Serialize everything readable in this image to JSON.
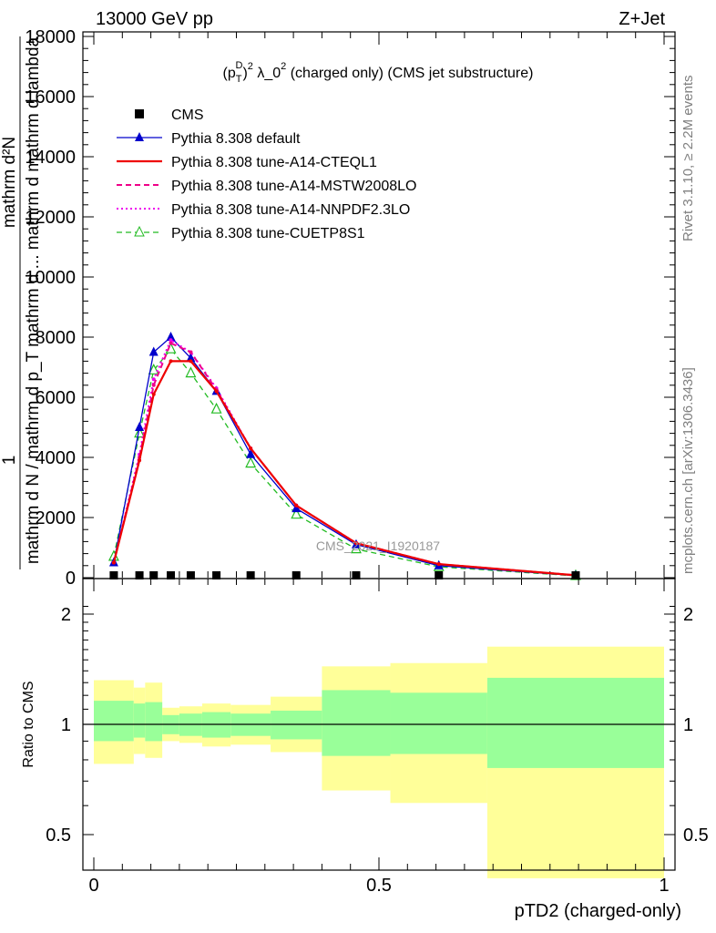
{
  "header": {
    "left": "13000 GeV pp",
    "right": "Z+Jet"
  },
  "plot_title": "(p_T^D)^2 λ_0^2 (charged only) (CMS jet substructure)",
  "side_text": {
    "rivet": "Rivet 3.1.10, ≥ 2.2M events",
    "mcplots": "mcplots.cern.ch [arXiv:1306.3436]"
  },
  "watermark": "CMS_2021_I1920187",
  "colors": {
    "data": "#000000",
    "default": "#0000cc",
    "cteql1": "#ee0000",
    "mstw": "#ee0088",
    "nnpdf": "#ee00ee",
    "cuetp8s1": "#22bb22",
    "band_inner": "#99ff99",
    "band_outer": "#ffff99"
  },
  "chart_data": [
    {
      "type": "line",
      "panel": "main",
      "ylabel_parts": [
        "1",
        "mathrm d N / mathrm d p_T mathrm d ... mathrm d mathrm d lambda",
        "mathrm d^2N",
        "mathrm d N / mathrm d mathrm d mathrm d ..."
      ],
      "xlim": [
        0,
        1
      ],
      "ylim": [
        0,
        18000
      ],
      "yticks": [
        "0",
        "2000",
        "4000",
        "6000",
        "8000",
        "10000",
        "12000",
        "14000",
        "16000",
        "18000"
      ],
      "legend_position": "top-left",
      "legend": [
        "CMS",
        "Pythia 8.308 default",
        "Pythia 8.308 tune-A14-CTEQL1",
        "Pythia 8.308 tune-A14-MSTW2008LO",
        "Pythia 8.308 tune-A14-NNPDF2.3LO",
        "Pythia 8.308 tune-CUETP8S1"
      ],
      "data_points": {
        "name": "CMS",
        "x": [
          0.035,
          0.08,
          0.105,
          0.135,
          0.17,
          0.215,
          0.275,
          0.355,
          0.46,
          0.605,
          0.845
        ],
        "y": [
          0,
          0,
          0,
          0,
          0,
          0,
          0,
          0,
          0,
          0,
          0
        ]
      },
      "x": [
        0.035,
        0.08,
        0.105,
        0.135,
        0.17,
        0.215,
        0.275,
        0.355,
        0.46,
        0.605,
        0.845
      ],
      "series": [
        {
          "name": "Pythia 8.308 default",
          "key": "default",
          "values": [
            500,
            5000,
            7500,
            8000,
            7300,
            6200,
            4100,
            2300,
            1100,
            400,
            70
          ]
        },
        {
          "name": "Pythia 8.308 tune-A14-CTEQL1",
          "key": "cteql1",
          "values": [
            500,
            3900,
            6100,
            7200,
            7200,
            6200,
            4300,
            2400,
            1150,
            450,
            80
          ]
        },
        {
          "name": "Pythia 8.308 tune-A14-MSTW2008LO",
          "key": "mstw",
          "values": [
            500,
            4000,
            6400,
            7800,
            7500,
            6250,
            4300,
            2400,
            1150,
            450,
            80
          ]
        },
        {
          "name": "Pythia 8.308 tune-A14-NNPDF2.3LO",
          "key": "nnpdf",
          "values": [
            500,
            4100,
            6600,
            7900,
            7500,
            6300,
            4300,
            2400,
            1150,
            450,
            80
          ]
        },
        {
          "name": "Pythia 8.308 tune-CUETP8S1",
          "key": "cuetp8s1",
          "values": [
            700,
            4800,
            6900,
            7600,
            6800,
            5600,
            3800,
            2100,
            950,
            360,
            60
          ]
        }
      ]
    },
    {
      "type": "area",
      "panel": "ratio",
      "ylabel": "Ratio to CMS",
      "xlabel": "pTD2 (charged-only)",
      "xlim": [
        0,
        1
      ],
      "xticks": [
        "0",
        "0.5",
        "1"
      ],
      "yticks": [
        "0.5",
        "1",
        "2"
      ],
      "reference_line": 1,
      "bins": [
        {
          "x0": 0.0,
          "x1": 0.07,
          "inner_lo": 0.9,
          "inner_hi": 1.16,
          "outer_lo": 0.78,
          "outer_hi": 1.32
        },
        {
          "x0": 0.07,
          "x1": 0.09,
          "inner_lo": 0.92,
          "inner_hi": 1.14,
          "outer_lo": 0.83,
          "outer_hi": 1.26
        },
        {
          "x0": 0.09,
          "x1": 0.12,
          "inner_lo": 0.9,
          "inner_hi": 1.15,
          "outer_lo": 0.81,
          "outer_hi": 1.3
        },
        {
          "x0": 0.12,
          "x1": 0.15,
          "inner_lo": 0.94,
          "inner_hi": 1.06,
          "outer_lo": 0.9,
          "outer_hi": 1.11
        },
        {
          "x0": 0.15,
          "x1": 0.19,
          "inner_lo": 0.93,
          "inner_hi": 1.07,
          "outer_lo": 0.89,
          "outer_hi": 1.12
        },
        {
          "x0": 0.19,
          "x1": 0.24,
          "inner_lo": 0.92,
          "inner_hi": 1.08,
          "outer_lo": 0.87,
          "outer_hi": 1.14
        },
        {
          "x0": 0.24,
          "x1": 0.31,
          "inner_lo": 0.93,
          "inner_hi": 1.07,
          "outer_lo": 0.88,
          "outer_hi": 1.13
        },
        {
          "x0": 0.31,
          "x1": 0.4,
          "inner_lo": 0.91,
          "inner_hi": 1.09,
          "outer_lo": 0.84,
          "outer_hi": 1.19
        },
        {
          "x0": 0.4,
          "x1": 0.52,
          "inner_lo": 0.82,
          "inner_hi": 1.24,
          "outer_lo": 0.66,
          "outer_hi": 1.44
        },
        {
          "x0": 0.52,
          "x1": 0.69,
          "inner_lo": 0.83,
          "inner_hi": 1.22,
          "outer_lo": 0.61,
          "outer_hi": 1.47
        },
        {
          "x0": 0.69,
          "x1": 1.0,
          "inner_lo": 0.76,
          "inner_hi": 1.34,
          "outer_lo": 0.38,
          "outer_hi": 1.63
        }
      ]
    }
  ]
}
